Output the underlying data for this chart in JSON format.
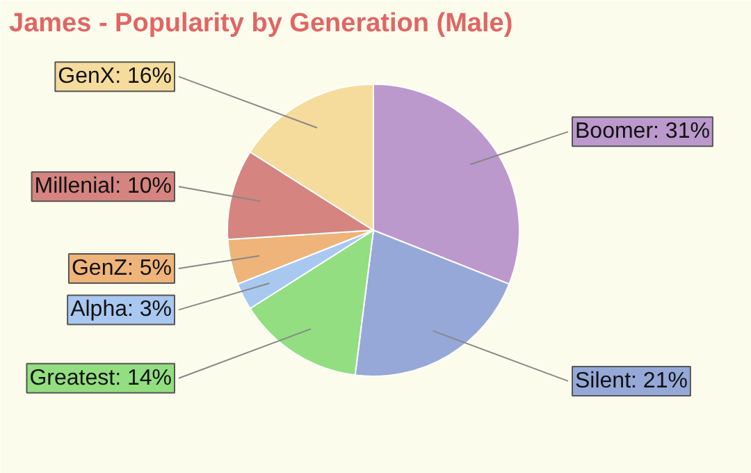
{
  "chart_data": {
    "type": "pie",
    "title": "James - Popularity by Generation (Male)",
    "categories": [
      "Boomer",
      "Silent",
      "Greatest",
      "Alpha",
      "GenZ",
      "Millenial",
      "GenX"
    ],
    "values": [
      31,
      21,
      14,
      3,
      5,
      10,
      16
    ],
    "value_labels": [
      "31%",
      "21%",
      "14%",
      "3%",
      "5%",
      "10%",
      "16%"
    ],
    "colors": [
      "#bb99cc",
      "#96a8d8",
      "#92de80",
      "#a8c8f0",
      "#eeb47a",
      "#d58480",
      "#f5dc9c"
    ]
  }
}
